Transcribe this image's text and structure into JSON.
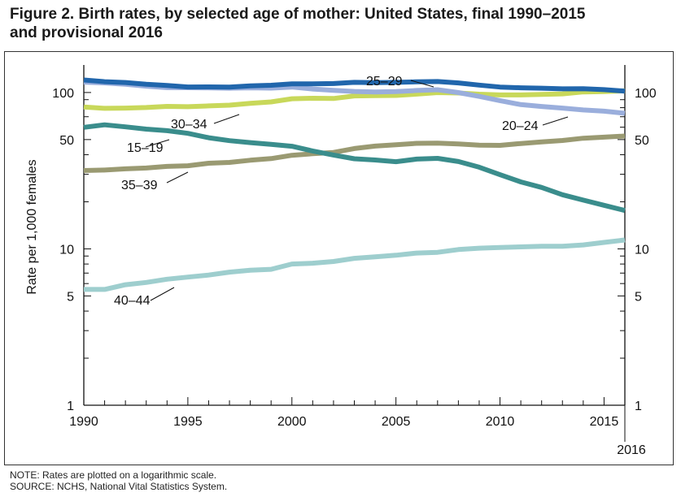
{
  "title_line1": "Figure 2. Birth rates, by selected age of mother: United States, final 1990–2015",
  "title_line2": "and provisional 2016",
  "note": "NOTE: Rates are plotted on a logarithmic scale.",
  "source": "SOURCE: NCHS, National Vital Statistics System.",
  "chart_data": {
    "type": "line",
    "title": "Birth rates, by selected age of mother: United States, final 1990–2015 and provisional 2016",
    "ylabel": "Rate per 1,000 females",
    "xlabel": "",
    "y_scale": "log",
    "ylim": [
      1,
      150
    ],
    "xlim": [
      1990,
      2016
    ],
    "x_ticks": [
      1990,
      1995,
      2000,
      2005,
      2010,
      2015
    ],
    "x_tick_labels": [
      "1990",
      "1995",
      "2000",
      "2005",
      "2010",
      "2015"
    ],
    "x_extra_label": "2016",
    "y_ticks": [
      1,
      5,
      10,
      50,
      100
    ],
    "y_tick_labels": [
      "1",
      "5",
      "10",
      "50",
      "100"
    ],
    "grid": false,
    "x": [
      1990,
      1991,
      1992,
      1993,
      1994,
      1995,
      1996,
      1997,
      1998,
      1999,
      2000,
      2001,
      2002,
      2003,
      2004,
      2005,
      2006,
      2007,
      2008,
      2009,
      2010,
      2011,
      2012,
      2013,
      2014,
      2015,
      2016
    ],
    "series": [
      {
        "name": "15–19",
        "color": "#3a8d8c",
        "values": [
          59.9,
          62.1,
          60.3,
          58.3,
          57.0,
          54.8,
          51.4,
          49.2,
          47.8,
          46.6,
          45.3,
          42.3,
          39.8,
          37.7,
          37.0,
          36.1,
          37.5,
          37.9,
          36.2,
          33.3,
          29.8,
          26.8,
          24.7,
          22.2,
          20.5,
          19.0,
          17.6
        ]
      },
      {
        "name": "20–24",
        "color": "#9aaedc",
        "values": [
          116.5,
          115.2,
          112.8,
          109.8,
          107.4,
          107.3,
          107.0,
          106.5,
          107.2,
          106.7,
          108.4,
          105.3,
          103.2,
          101.6,
          100.9,
          101.3,
          103.1,
          104.1,
          99.9,
          94.4,
          88.7,
          83.7,
          81.4,
          79.5,
          77.3,
          76.0,
          73.6
        ]
      },
      {
        "name": "25–29",
        "color": "#2166ac",
        "values": [
          120.2,
          117.2,
          115.8,
          112.8,
          110.9,
          108.5,
          108.6,
          108.3,
          110.2,
          111.2,
          113.5,
          113.5,
          114.1,
          116.1,
          115.7,
          116.1,
          116.9,
          117.5,
          115.1,
          111.5,
          108.3,
          107.2,
          106.5,
          105.5,
          105.8,
          104.3,
          102.1
        ]
      },
      {
        "name": "30–34",
        "color": "#c8d85a",
        "values": [
          80.8,
          79.2,
          79.5,
          80.2,
          81.5,
          81.1,
          82.1,
          83.0,
          85.2,
          87.1,
          91.2,
          91.9,
          91.5,
          95.1,
          95.5,
          95.8,
          97.7,
          99.9,
          99.3,
          97.5,
          96.5,
          96.5,
          97.3,
          98.0,
          100.8,
          101.5,
          102.6
        ]
      },
      {
        "name": "35–39",
        "color": "#9a9a72",
        "values": [
          31.7,
          31.9,
          32.5,
          32.9,
          33.7,
          34.0,
          35.3,
          35.7,
          36.9,
          37.8,
          39.7,
          40.6,
          41.4,
          43.8,
          45.4,
          46.3,
          47.3,
          47.5,
          46.9,
          46.1,
          45.9,
          47.2,
          48.3,
          49.3,
          51.0,
          51.8,
          52.7
        ]
      },
      {
        "name": "40–44",
        "color": "#9ecece",
        "values": [
          5.5,
          5.5,
          5.9,
          6.1,
          6.4,
          6.6,
          6.8,
          7.1,
          7.3,
          7.4,
          8.0,
          8.1,
          8.3,
          8.7,
          8.9,
          9.1,
          9.4,
          9.5,
          9.9,
          10.1,
          10.2,
          10.3,
          10.4,
          10.4,
          10.6,
          11.0,
          11.4
        ]
      }
    ]
  }
}
